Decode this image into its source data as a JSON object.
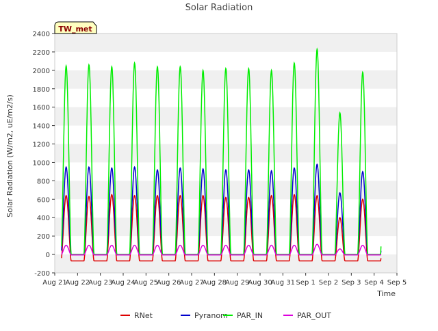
{
  "chart_data": {
    "type": "line",
    "title": "Solar Radiation",
    "xlabel": "Time",
    "ylabel": "Solar Radiation (W/m2, uE/m2/s)",
    "badge": "TW_met",
    "ylim": [
      -200,
      2400
    ],
    "yticks": [
      -200,
      0,
      200,
      400,
      600,
      800,
      1000,
      1200,
      1400,
      1600,
      1800,
      2000,
      2200,
      2400
    ],
    "xlim_days": [
      0,
      15
    ],
    "xticks": [
      "Aug 21",
      "Aug 22",
      "Aug 23",
      "Aug 24",
      "Aug 25",
      "Aug 26",
      "Aug 27",
      "Aug 28",
      "Aug 29",
      "Aug 30",
      "Aug 31",
      "Sep 1",
      "Sep 2",
      "Sep 3",
      "Sep 4",
      "Sep 5"
    ],
    "grid": "horizontal bands",
    "legend_position": "bottom",
    "data_start_day": 0.3,
    "data_end_day": 14.3,
    "night_values": {
      "RNet": -70,
      "Pyranom": 0,
      "PAR_IN": 0,
      "PAR_OUT": -5
    },
    "series": [
      {
        "name": "RNet",
        "color": "#dd0000",
        "daily_peak": [
          640,
          630,
          650,
          640,
          640,
          640,
          640,
          620,
          620,
          640,
          650,
          640,
          400,
          600
        ]
      },
      {
        "name": "Pyranom",
        "color": "#0000cc",
        "daily_peak": [
          950,
          950,
          940,
          950,
          920,
          940,
          930,
          920,
          920,
          910,
          940,
          980,
          670,
          900
        ]
      },
      {
        "name": "PAR_IN",
        "color": "#00ee00",
        "daily_peak": [
          2050,
          2060,
          2040,
          2080,
          2040,
          2040,
          2000,
          2020,
          2020,
          2000,
          2080,
          2230,
          1540,
          1980
        ]
      },
      {
        "name": "PAR_OUT",
        "color": "#dd00dd",
        "daily_peak": [
          100,
          100,
          100,
          100,
          100,
          100,
          100,
          100,
          100,
          100,
          100,
          110,
          60,
          100
        ]
      }
    ]
  }
}
